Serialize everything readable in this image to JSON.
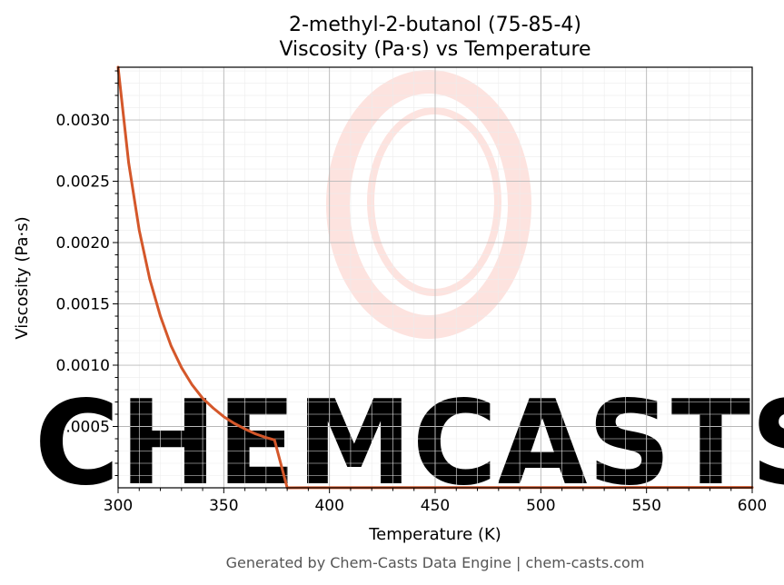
{
  "chart_data": {
    "type": "line",
    "title_line1": "2-methyl-2-butanol (75-85-4)",
    "title_line2": "Viscosity (Pa·s) vs Temperature",
    "xlabel": "Temperature (K)",
    "ylabel": "Viscosity (Pa·s)",
    "xlim": [
      300,
      600
    ],
    "ylim": [
      0,
      0.00343
    ],
    "x_ticks": [
      300,
      350,
      400,
      450,
      500,
      550,
      600
    ],
    "x_tick_labels": [
      "300",
      "350",
      "400",
      "450",
      "500",
      "550",
      "600"
    ],
    "y_ticks": [
      0.0005,
      0.001,
      0.0015,
      0.002,
      0.0025,
      0.003
    ],
    "y_tick_labels": [
      "0.0005",
      "0.0010",
      "0.0015",
      "0.0020",
      "0.0025",
      "0.0030"
    ],
    "grid": true,
    "minor_grid": true,
    "series": [
      {
        "color": "#d4572a",
        "x": [
          300,
          305,
          310,
          315,
          320,
          325,
          330,
          335,
          340,
          345,
          350,
          355,
          360,
          365,
          370,
          374,
          380,
          390,
          400,
          450,
          500,
          550,
          600
        ],
        "y": [
          0.00343,
          0.00265,
          0.0021,
          0.0017,
          0.0014,
          0.00116,
          0.00098,
          0.00084,
          0.00073,
          0.00065,
          0.00058,
          0.000525,
          0.00048,
          0.00044,
          0.00041,
          0.00039,
          0.0,
          5e-07,
          1e-06,
          1.5e-06,
          2e-06,
          2.5e-06,
          3e-06
        ]
      }
    ]
  },
  "watermark": {
    "text": "CHEMCASTS",
    "color": "#fde3df"
  },
  "footer": {
    "text": "Generated by Chem-Casts Data Engine | chem-casts.com"
  }
}
